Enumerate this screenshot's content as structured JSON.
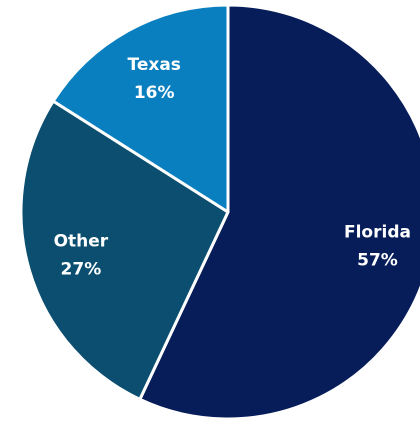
{
  "chart_data": {
    "type": "pie",
    "categories": [
      "Florida",
      "Other",
      "Texas"
    ],
    "values": [
      57,
      27,
      16
    ],
    "value_labels": [
      "57%",
      "27%",
      "16%"
    ],
    "colors": [
      "#061d5a",
      "#0b4e6f",
      "#0a7fbf"
    ]
  }
}
